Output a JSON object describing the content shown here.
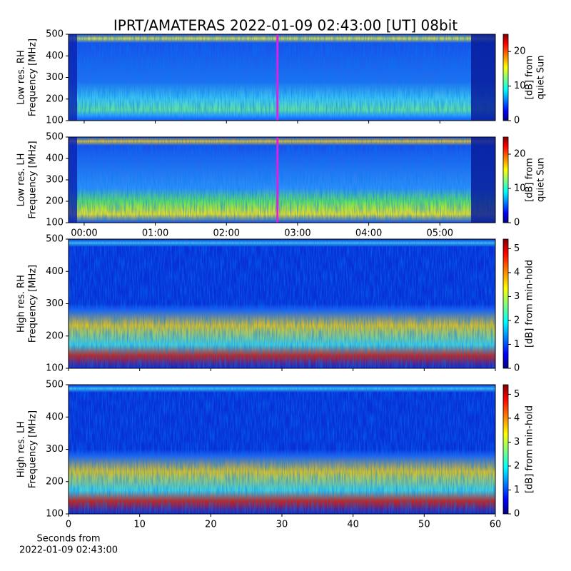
{
  "title": "IPRT/AMATERAS 2022-01-09 02:43:00 [UT]   08bit",
  "chart_data": [
    {
      "type": "heatmap",
      "ylabel": [
        "Low res. RH",
        "Frequency [MHz]"
      ],
      "ylim": [
        100,
        500
      ],
      "yticks": [
        100,
        200,
        300,
        400,
        500
      ],
      "xlim": [
        -0.22,
        5.78
      ],
      "marker_x": 2.717,
      "marker_color": "#e020e0",
      "colorbar_label": [
        "[dB] from",
        "quiet Sun"
      ],
      "clim": [
        0,
        25
      ],
      "cticks": [
        0,
        10,
        20
      ]
    },
    {
      "type": "heatmap",
      "ylabel": [
        "Low res. LH",
        "Frequency [MHz]"
      ],
      "ylim": [
        100,
        500
      ],
      "yticks": [
        100,
        200,
        300,
        400,
        500
      ],
      "xlim": [
        -0.22,
        5.78
      ],
      "marker_x": 2.717,
      "marker_color": "#e020e0",
      "xticks": [
        {
          "value": 0,
          "label": "00:00"
        },
        {
          "value": 1,
          "label": "01:00"
        },
        {
          "value": 2,
          "label": "02:00"
        },
        {
          "value": 3,
          "label": "03:00"
        },
        {
          "value": 4,
          "label": "04:00"
        },
        {
          "value": 5,
          "label": "05:00"
        }
      ],
      "colorbar_label": [
        "[dB] from",
        "quiet Sun"
      ],
      "clim": [
        0,
        25
      ],
      "cticks": [
        0,
        10,
        20
      ]
    },
    {
      "type": "heatmap",
      "ylabel": [
        "High res. RH",
        "Frequency [MHz]"
      ],
      "ylim": [
        100,
        500
      ],
      "yticks": [
        100,
        200,
        300,
        400,
        500
      ],
      "xlim": [
        0,
        60
      ],
      "colorbar_label": [
        "[dB] from min-hold"
      ],
      "clim": [
        0,
        5.4
      ],
      "cticks": [
        0,
        1,
        2,
        3,
        4,
        5
      ]
    },
    {
      "type": "heatmap",
      "ylabel": [
        "High res. LH",
        "Frequency [MHz]"
      ],
      "ylim": [
        100,
        500
      ],
      "yticks": [
        100,
        200,
        300,
        400,
        500
      ],
      "xlim": [
        0,
        60
      ],
      "xticks": [
        0,
        10,
        20,
        30,
        40,
        50,
        60
      ],
      "xlabel": [
        "Seconds from",
        "2022-01-09 02:43:00"
      ],
      "colorbar_label": [
        "[dB] from min-hold"
      ],
      "clim": [
        0,
        5.4
      ],
      "cticks": [
        0,
        1,
        2,
        3,
        4,
        5
      ]
    }
  ]
}
